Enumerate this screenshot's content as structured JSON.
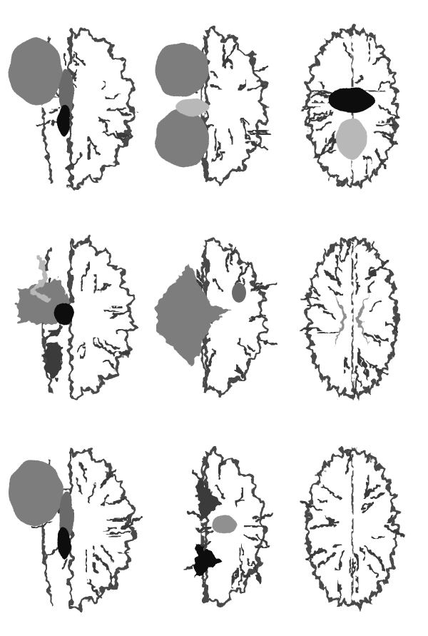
{
  "figure": {
    "rows": 3,
    "cols": 3,
    "background": "#ffffff",
    "colors": {
      "outline": "#4a4a4a",
      "matter": "#ffffff",
      "sulcus": "#3a3a3a",
      "mass": "#7d7d7d",
      "mass_dark": "#6a6a6a",
      "ventricle": "#111111",
      "gray_region": "#909090",
      "light_region": "#b8b8b8"
    },
    "panels": [
      {
        "name": "slice-r1-c1",
        "view": "sagittal",
        "row": 0,
        "col": 0,
        "mass": "anterior-large"
      },
      {
        "name": "slice-r1-c2",
        "view": "coronal",
        "row": 0,
        "col": 1,
        "mass": "double-lobe"
      },
      {
        "name": "slice-r1-c3",
        "view": "axial",
        "row": 0,
        "col": 2,
        "mass": "none-ventricles-dark"
      },
      {
        "name": "slice-r2-c1",
        "view": "sagittal",
        "row": 1,
        "col": 0,
        "mass": "fragmented"
      },
      {
        "name": "slice-r2-c2",
        "view": "coronal",
        "row": 1,
        "col": 1,
        "mass": "central-lobe"
      },
      {
        "name": "slice-r2-c3",
        "view": "axial",
        "row": 1,
        "col": 2,
        "mass": "none-ventricles-gray"
      },
      {
        "name": "slice-r3-c1",
        "view": "sagittal",
        "row": 2,
        "col": 0,
        "mass": "anterior-large"
      },
      {
        "name": "slice-r3-c2",
        "view": "coronal",
        "row": 2,
        "col": 1,
        "mass": "none-ventricles-dark"
      },
      {
        "name": "slice-r3-c3",
        "view": "axial",
        "row": 2,
        "col": 2,
        "mass": "none-superior"
      }
    ]
  }
}
